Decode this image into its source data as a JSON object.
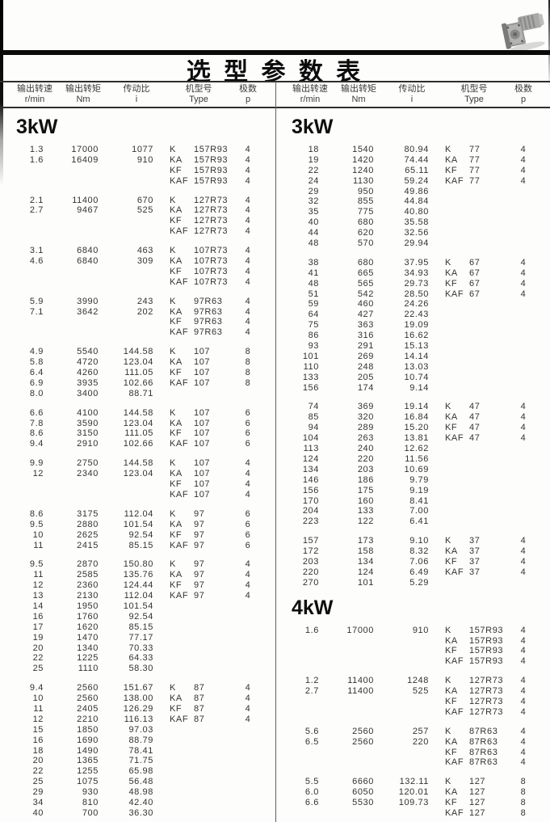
{
  "page_title": "选 型 参 数 表",
  "header": {
    "speed": "输出转速",
    "speed_unit": "r/min",
    "torque": "输出转矩",
    "torque_unit": "Nm",
    "ratio": "传动比",
    "ratio_unit": "i",
    "type": "机型号",
    "type_unit": "Type",
    "poles": "极数",
    "poles_unit": "p"
  },
  "decor": {
    "photo": "gearmotor-photo"
  },
  "left_panel": {
    "sections": [
      {
        "title": "3kW",
        "groups": [
          [
            [
              "1.3",
              "17000",
              "1077",
              "K",
              "157R93",
              "4"
            ],
            [
              "1.6",
              "16409",
              "910",
              "KA",
              "157R93",
              "4"
            ],
            [
              "",
              "",
              "",
              "KF",
              "157R93",
              "4"
            ],
            [
              "",
              "",
              "",
              "KAF",
              "157R93",
              "4"
            ]
          ],
          [
            [
              "2.1",
              "11400",
              "670",
              "K",
              "127R73",
              "4"
            ],
            [
              "2.7",
              "9467",
              "525",
              "KA",
              "127R73",
              "4"
            ],
            [
              "",
              "",
              "",
              "KF",
              "127R73",
              "4"
            ],
            [
              "",
              "",
              "",
              "KAF",
              "127R73",
              "4"
            ]
          ],
          [
            [
              "3.1",
              "6840",
              "463",
              "K",
              "107R73",
              "4"
            ],
            [
              "4.6",
              "6840",
              "309",
              "KA",
              "107R73",
              "4"
            ],
            [
              "",
              "",
              "",
              "KF",
              "107R73",
              "4"
            ],
            [
              "",
              "",
              "",
              "KAF",
              "107R73",
              "4"
            ]
          ],
          [
            [
              "5.9",
              "3990",
              "243",
              "K",
              "97R63",
              "4"
            ],
            [
              "7.1",
              "3642",
              "202",
              "KA",
              "97R63",
              "4"
            ],
            [
              "",
              "",
              "",
              "KF",
              "97R63",
              "4"
            ],
            [
              "",
              "",
              "",
              "KAF",
              "97R63",
              "4"
            ]
          ],
          [
            [
              "4.9",
              "5540",
              "144.58",
              "K",
              "107",
              "8"
            ],
            [
              "5.8",
              "4720",
              "123.04",
              "KA",
              "107",
              "8"
            ],
            [
              "6.4",
              "4260",
              "111.05",
              "KF",
              "107",
              "8"
            ],
            [
              "6.9",
              "3935",
              "102.66",
              "KAF",
              "107",
              "8"
            ],
            [
              "8.0",
              "3400",
              "88.71",
              "",
              "",
              ""
            ]
          ],
          [
            [
              "6.6",
              "4100",
              "144.58",
              "K",
              "107",
              "6"
            ],
            [
              "7.8",
              "3590",
              "123.04",
              "KA",
              "107",
              "6"
            ],
            [
              "8.6",
              "3150",
              "111.05",
              "KF",
              "107",
              "6"
            ],
            [
              "9.4",
              "2910",
              "102.66",
              "KAF",
              "107",
              "6"
            ]
          ],
          [
            [
              "9.9",
              "2750",
              "144.58",
              "K",
              "107",
              "4"
            ],
            [
              "12",
              "2340",
              "123.04",
              "KA",
              "107",
              "4"
            ],
            [
              "",
              "",
              "",
              "KF",
              "107",
              "4"
            ],
            [
              "",
              "",
              "",
              "KAF",
              "107",
              "4"
            ]
          ],
          [
            [
              "8.6",
              "3175",
              "112.04",
              "K",
              "97",
              "6"
            ],
            [
              "9.5",
              "2880",
              "101.54",
              "KA",
              "97",
              "6"
            ],
            [
              "10",
              "2625",
              "92.54",
              "KF",
              "97",
              "6"
            ],
            [
              "11",
              "2415",
              "85.15",
              "KAF",
              "97",
              "6"
            ]
          ],
          [
            [
              "9.5",
              "2870",
              "150.80",
              "K",
              "97",
              "4"
            ],
            [
              "11",
              "2585",
              "135.76",
              "KA",
              "97",
              "4"
            ],
            [
              "12",
              "2360",
              "124.44",
              "KF",
              "97",
              "4"
            ],
            [
              "13",
              "2130",
              "112.04",
              "KAF",
              "97",
              "4"
            ],
            [
              "14",
              "1950",
              "101.54",
              "",
              "",
              ""
            ],
            [
              "16",
              "1760",
              "92.54",
              "",
              "",
              ""
            ],
            [
              "17",
              "1620",
              "85.15",
              "",
              "",
              ""
            ],
            [
              "19",
              "1470",
              "77.17",
              "",
              "",
              ""
            ],
            [
              "20",
              "1340",
              "70.33",
              "",
              "",
              ""
            ],
            [
              "22",
              "1225",
              "64.33",
              "",
              "",
              ""
            ],
            [
              "25",
              "1110",
              "58.30",
              "",
              "",
              ""
            ]
          ],
          [
            [
              "9.4",
              "2560",
              "151.67",
              "K",
              "87",
              "4"
            ],
            [
              "10",
              "2560",
              "138.00",
              "KA",
              "87",
              "4"
            ],
            [
              "11",
              "2405",
              "126.29",
              "KF",
              "87",
              "4"
            ],
            [
              "12",
              "2210",
              "116.13",
              "KAF",
              "87",
              "4"
            ],
            [
              "15",
              "1850",
              "97.03",
              "",
              "",
              ""
            ],
            [
              "16",
              "1690",
              "88.79",
              "",
              "",
              ""
            ],
            [
              "18",
              "1490",
              "78.41",
              "",
              "",
              ""
            ],
            [
              "20",
              "1365",
              "71.75",
              "",
              "",
              ""
            ],
            [
              "22",
              "1255",
              "65.98",
              "",
              "",
              ""
            ],
            [
              "25",
              "1075",
              "56.48",
              "",
              "",
              ""
            ],
            [
              "29",
              "930",
              "48.98",
              "",
              "",
              ""
            ],
            [
              "34",
              "810",
              "42.40",
              "",
              "",
              ""
            ],
            [
              "40",
              "700",
              "36.30",
              "",
              "",
              ""
            ]
          ]
        ]
      }
    ]
  },
  "right_panel": {
    "sections": [
      {
        "title": "3kW",
        "groups": [
          [
            [
              "18",
              "1540",
              "80.94",
              "K",
              "77",
              "4"
            ],
            [
              "19",
              "1420",
              "74.44",
              "KA",
              "77",
              "4"
            ],
            [
              "22",
              "1240",
              "65.11",
              "KF",
              "77",
              "4"
            ],
            [
              "24",
              "1130",
              "59.24",
              "KAF",
              "77",
              "4"
            ],
            [
              "29",
              "950",
              "49.86",
              "",
              "",
              ""
            ],
            [
              "32",
              "855",
              "44.84",
              "",
              "",
              ""
            ],
            [
              "35",
              "775",
              "40.80",
              "",
              "",
              ""
            ],
            [
              "40",
              "680",
              "35.58",
              "",
              "",
              ""
            ],
            [
              "44",
              "620",
              "32.56",
              "",
              "",
              ""
            ],
            [
              "48",
              "570",
              "29.94",
              "",
              "",
              ""
            ]
          ],
          [
            [
              "38",
              "680",
              "37.95",
              "K",
              "67",
              "4"
            ],
            [
              "41",
              "665",
              "34.93",
              "KA",
              "67",
              "4"
            ],
            [
              "48",
              "565",
              "29.73",
              "KF",
              "67",
              "4"
            ],
            [
              "51",
              "542",
              "28.50",
              "KAF",
              "67",
              "4"
            ],
            [
              "59",
              "460",
              "24.26",
              "",
              "",
              ""
            ],
            [
              "64",
              "427",
              "22.43",
              "",
              "",
              ""
            ],
            [
              "75",
              "363",
              "19.09",
              "",
              "",
              ""
            ],
            [
              "86",
              "316",
              "16.62",
              "",
              "",
              ""
            ],
            [
              "93",
              "291",
              "15.13",
              "",
              "",
              ""
            ],
            [
              "101",
              "269",
              "14.14",
              "",
              "",
              ""
            ],
            [
              "110",
              "248",
              "13.03",
              "",
              "",
              ""
            ],
            [
              "133",
              "205",
              "10.74",
              "",
              "",
              ""
            ],
            [
              "156",
              "174",
              "9.14",
              "",
              "",
              ""
            ]
          ],
          [
            [
              "74",
              "369",
              "19.14",
              "K",
              "47",
              "4"
            ],
            [
              "85",
              "320",
              "16.84",
              "KA",
              "47",
              "4"
            ],
            [
              "94",
              "289",
              "15.20",
              "KF",
              "47",
              "4"
            ],
            [
              "104",
              "263",
              "13.81",
              "KAF",
              "47",
              "4"
            ],
            [
              "113",
              "240",
              "12.62",
              "",
              "",
              ""
            ],
            [
              "124",
              "220",
              "11.56",
              "",
              "",
              ""
            ],
            [
              "134",
              "203",
              "10.69",
              "",
              "",
              ""
            ],
            [
              "146",
              "186",
              "9.79",
              "",
              "",
              ""
            ],
            [
              "156",
              "175",
              "9.19",
              "",
              "",
              ""
            ],
            [
              "170",
              "160",
              "8.41",
              "",
              "",
              ""
            ],
            [
              "204",
              "133",
              "7.00",
              "",
              "",
              ""
            ],
            [
              "223",
              "122",
              "6.41",
              "",
              "",
              ""
            ]
          ],
          [
            [
              "157",
              "173",
              "9.10",
              "K",
              "37",
              "4"
            ],
            [
              "172",
              "158",
              "8.32",
              "KA",
              "37",
              "4"
            ],
            [
              "203",
              "134",
              "7.06",
              "KF",
              "37",
              "4"
            ],
            [
              "220",
              "124",
              "6.49",
              "KAF",
              "37",
              "4"
            ],
            [
              "270",
              "101",
              "5.29",
              "",
              "",
              ""
            ]
          ]
        ]
      },
      {
        "title": "4kW",
        "groups": [
          [
            [
              "1.6",
              "17000",
              "910",
              "K",
              "157R93",
              "4"
            ],
            [
              "",
              "",
              "",
              "KA",
              "157R93",
              "4"
            ],
            [
              "",
              "",
              "",
              "KF",
              "157R93",
              "4"
            ],
            [
              "",
              "",
              "",
              "KAF",
              "157R93",
              "4"
            ]
          ],
          [
            [
              "1.2",
              "11400",
              "1248",
              "K",
              "127R73",
              "4"
            ],
            [
              "2.7",
              "11400",
              "525",
              "KA",
              "127R73",
              "4"
            ],
            [
              "",
              "",
              "",
              "KF",
              "127R73",
              "4"
            ],
            [
              "",
              "",
              "",
              "KAF",
              "127R73",
              "4"
            ]
          ],
          [
            [
              "5.6",
              "2560",
              "257",
              "K",
              "87R63",
              "4"
            ],
            [
              "6.5",
              "2560",
              "220",
              "KA",
              "87R63",
              "4"
            ],
            [
              "",
              "",
              "",
              "KF",
              "87R63",
              "4"
            ],
            [
              "",
              "",
              "",
              "KAF",
              "87R63",
              "4"
            ]
          ],
          [
            [
              "5.5",
              "6660",
              "132.11",
              "K",
              "127",
              "8"
            ],
            [
              "6.0",
              "6050",
              "120.01",
              "KA",
              "127",
              "8"
            ],
            [
              "6.6",
              "5530",
              "109.73",
              "KF",
              "127",
              "8"
            ],
            [
              "",
              "",
              "",
              "KAF",
              "127",
              "8"
            ]
          ]
        ]
      }
    ]
  }
}
